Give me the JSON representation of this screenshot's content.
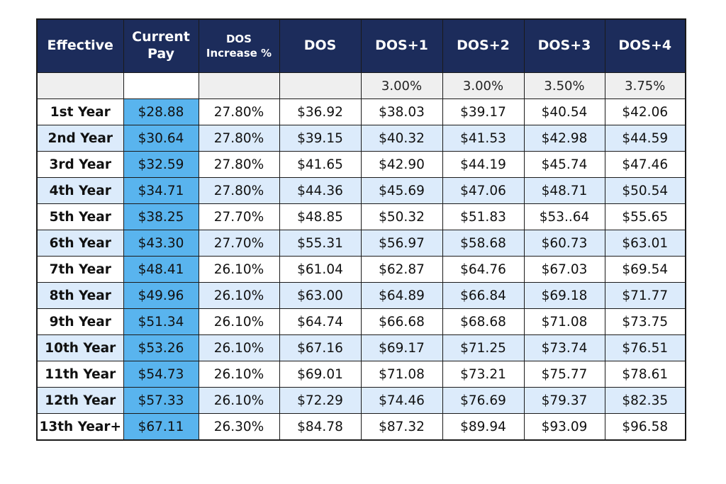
{
  "chart_data": {
    "type": "table",
    "columns": [
      "Effective",
      "Current Pay",
      "DOS Increase %",
      "DOS",
      "DOS+1",
      "DOS+2",
      "DOS+3",
      "DOS+4"
    ],
    "increase_row": [
      "",
      "",
      "",
      "",
      "3.00%",
      "3.00%",
      "3.50%",
      "3.75%"
    ],
    "rows": [
      [
        "1st Year",
        "$28.88",
        "27.80%",
        "$36.92",
        "$38.03",
        "$39.17",
        "$40.54",
        "$42.06"
      ],
      [
        "2nd Year",
        "$30.64",
        "27.80%",
        "$39.15",
        "$40.32",
        "$41.53",
        "$42.98",
        "$44.59"
      ],
      [
        "3rd Year",
        "$32.59",
        "27.80%",
        "$41.65",
        "$42.90",
        "$44.19",
        "$45.74",
        "$47.46"
      ],
      [
        "4th Year",
        "$34.71",
        "27.80%",
        "$44.36",
        "$45.69",
        "$47.06",
        "$48.71",
        "$50.54"
      ],
      [
        "5th Year",
        "$38.25",
        "27.70%",
        "$48.85",
        "$50.32",
        "$51.83",
        "$53..64",
        "$55.65"
      ],
      [
        "6th Year",
        "$43.30",
        "27.70%",
        "$55.31",
        "$56.97",
        "$58.68",
        "$60.73",
        "$63.01"
      ],
      [
        "7th Year",
        "$48.41",
        "26.10%",
        "$61.04",
        "$62.87",
        "$64.76",
        "$67.03",
        "$69.54"
      ],
      [
        "8th Year",
        "$49.96",
        "26.10%",
        "$63.00",
        "$64.89",
        "$66.84",
        "$69.18",
        "$71.77"
      ],
      [
        "9th Year",
        "$51.34",
        "26.10%",
        "$64.74",
        "$66.68",
        "$68.68",
        "$71.08",
        "$73.75"
      ],
      [
        "10th Year",
        "$53.26",
        "26.10%",
        "$67.16",
        "$69.17",
        "$71.25",
        "$73.74",
        "$76.51"
      ],
      [
        "11th Year",
        "$54.73",
        "26.10%",
        "$69.01",
        "$71.08",
        "$73.21",
        "$75.77",
        "$78.61"
      ],
      [
        "12th Year",
        "$57.33",
        "26.10%",
        "$72.29",
        "$74.46",
        "$76.69",
        "$79.37",
        "$82.35"
      ],
      [
        "13th Year+",
        "$67.11",
        "26.30%",
        "$84.78",
        "$87.32",
        "$89.94",
        "$93.09",
        "$96.58"
      ]
    ]
  },
  "colors": {
    "header_bg": "#1c2c5b",
    "header_text": "#ffffff",
    "current_pay_bg": "#59b4ee",
    "alt_row_bg": "#dcebfb",
    "rate_row_bg": "#efefef"
  }
}
